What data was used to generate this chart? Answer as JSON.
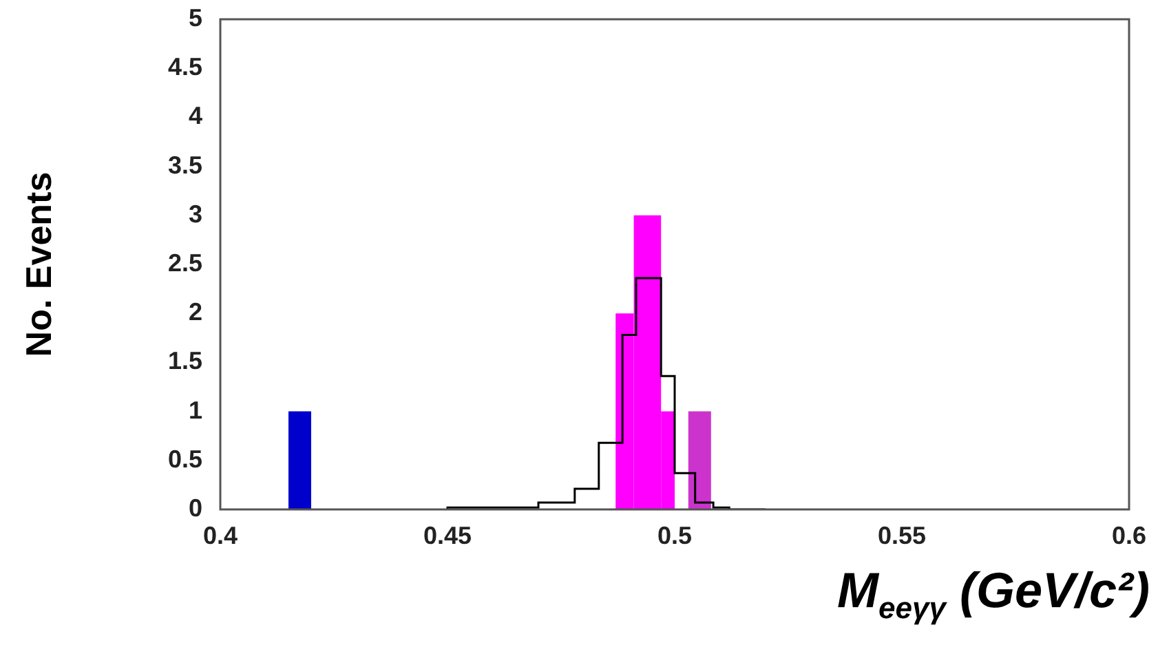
{
  "chart_data": {
    "type": "histogram",
    "ylabel": "No. Events",
    "xlabel": "M$_{eeγγ}$ (GeV/c²)",
    "xlim": [
      0.4,
      0.6
    ],
    "xticks": [
      0.4,
      0.45,
      0.5,
      0.55,
      0.6
    ],
    "ylim": [
      0,
      5
    ],
    "yticks": [
      0,
      0.5,
      1,
      1.5,
      2,
      2.5,
      3,
      3.5,
      4,
      4.5,
      5
    ],
    "grid": false,
    "legend": false,
    "series": [
      {
        "color": "#0000cc",
        "bins": [
          0.415,
          0.42
        ],
        "values": [
          1
        ]
      },
      {
        "color": "#ff00ff",
        "bins": [
          0.487,
          0.491,
          0.497,
          0.5
        ],
        "values": [
          2,
          3,
          1
        ]
      },
      {
        "color": "#cc33cc",
        "bins": [
          0.503,
          0.508
        ],
        "values": [
          1
        ]
      },
      {
        "type": "step",
        "color": "#000000",
        "x": [
          0.45,
          0.47,
          0.478,
          0.4833,
          0.4885,
          0.4915,
          0.497,
          0.5,
          0.5045,
          0.5085,
          0.512,
          0.52
        ],
        "values": [
          0,
          0.02,
          0.07,
          0.21,
          0.68,
          1.78,
          2.36,
          1.36,
          0.37,
          0.07,
          0.02,
          0
        ]
      }
    ]
  }
}
